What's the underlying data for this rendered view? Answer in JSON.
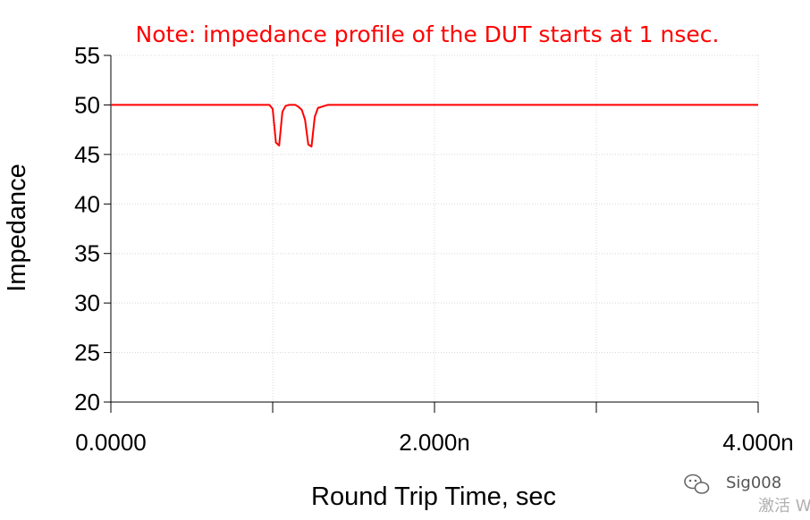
{
  "chart_data": {
    "type": "line",
    "title": "",
    "annotation": "Note: impedance profile of the DUT starts at 1 nsec.",
    "xlabel": "Round Trip Time, sec",
    "ylabel": "Impedance",
    "xlim": [
      0,
      4e-09
    ],
    "ylim": [
      20,
      55
    ],
    "x_ticks": [
      0,
      2e-09,
      4e-09
    ],
    "x_tick_labels": [
      "0.0000",
      "2.000n",
      "4.000n"
    ],
    "x_minor_ticks": [
      1e-09,
      3e-09
    ],
    "y_ticks": [
      20,
      25,
      30,
      35,
      40,
      45,
      50,
      55
    ],
    "y_tick_labels": [
      "20",
      "25",
      "30",
      "35",
      "40",
      "45",
      "50",
      "55"
    ],
    "grid": true,
    "series": [
      {
        "color": "#ff0000",
        "x": [
          0,
          9.8e-10,
          1e-09,
          1.02e-09,
          1.04e-09,
          1.06e-09,
          1.08e-09,
          1.1e-09,
          1.12e-09,
          1.14e-09,
          1.16e-09,
          1.18e-09,
          1.2e-09,
          1.22e-09,
          1.24e-09,
          1.26e-09,
          1.28e-09,
          1.3e-09,
          1.32e-09,
          1.34e-09,
          1.38e-09,
          1.42e-09,
          4e-09
        ],
        "y": [
          50,
          50,
          49.6,
          46.2,
          45.9,
          49.3,
          49.9,
          50,
          50,
          50,
          49.8,
          49.5,
          48.5,
          46.0,
          45.8,
          48.8,
          49.7,
          49.8,
          49.9,
          50,
          50,
          50,
          50
        ]
      }
    ]
  },
  "watermark": {
    "brand": "Sig008",
    "sub": "激活 W"
  }
}
